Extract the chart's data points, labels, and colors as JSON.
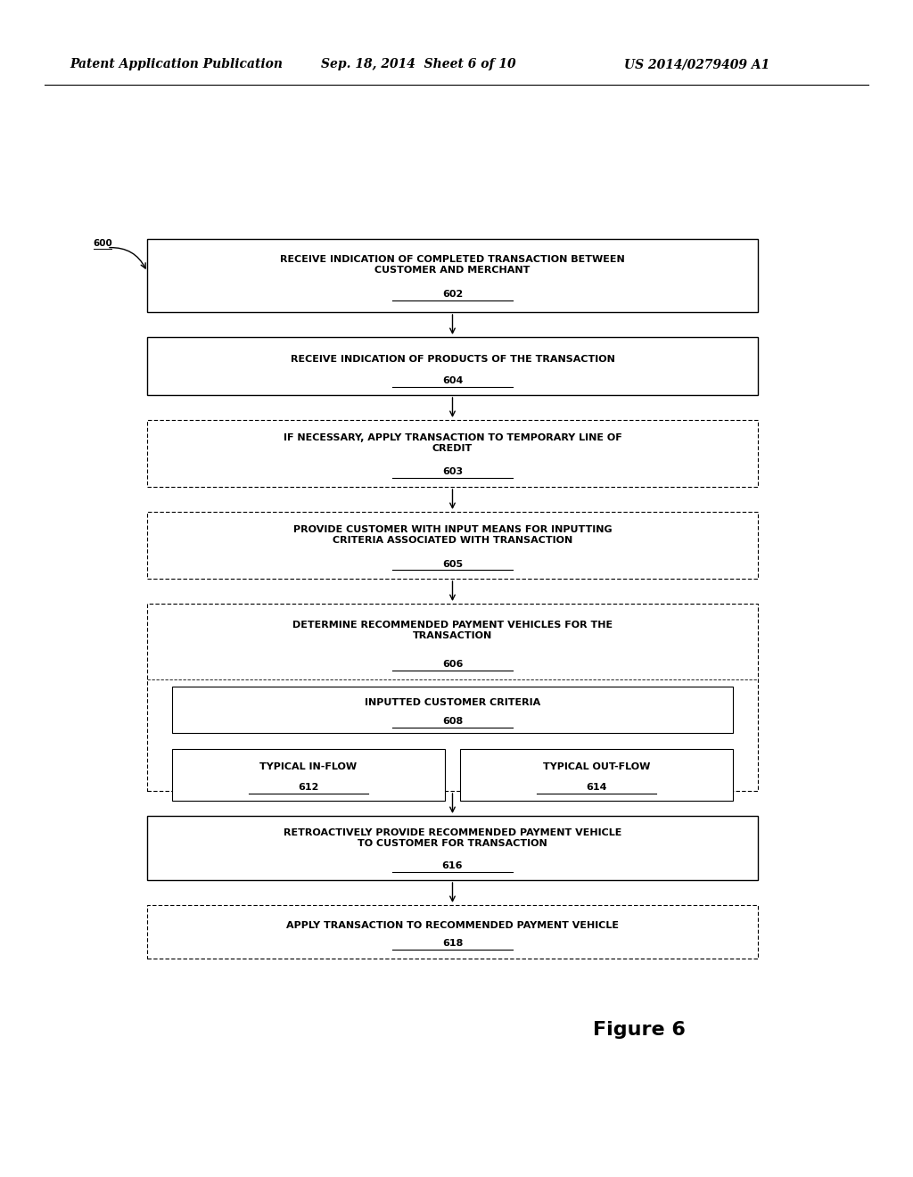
{
  "header_left": "Patent Application Publication",
  "header_center": "Sep. 18, 2014  Sheet 6 of 10",
  "header_right": "US 2014/0279409 A1",
  "figure_label": "Figure 6",
  "bg_color": "#ffffff",
  "font_size_header": 10,
  "font_size_body": 8.0,
  "font_size_figure": 16,
  "font_size_ref": 8.0,
  "font_size_label600": 7.5,
  "page_width": 10.24,
  "page_height": 13.2,
  "dpi": 100
}
